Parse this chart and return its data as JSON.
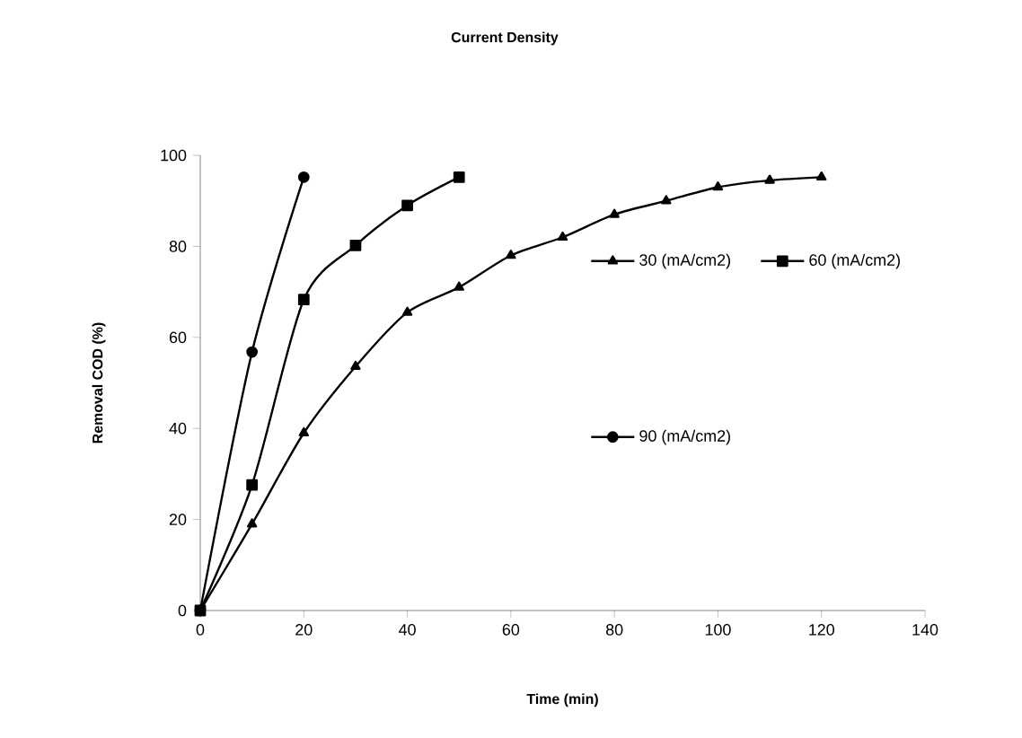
{
  "chart_data": {
    "type": "line",
    "title": "Current Density",
    "xlabel": "Time (min)",
    "ylabel": "Removal COD (%)",
    "xlim": [
      0,
      140
    ],
    "ylim": [
      0,
      100
    ],
    "xticks": [
      0,
      20,
      40,
      60,
      80,
      100,
      120,
      140
    ],
    "yticks": [
      0,
      20,
      40,
      60,
      80,
      100
    ],
    "grid": false,
    "legend": "right",
    "series": [
      {
        "name": "30 (mA/cm2)",
        "color": "#000000",
        "marker": "triangle",
        "x": [
          0,
          10,
          20,
          30,
          40,
          50,
          60,
          70,
          80,
          90,
          100,
          110,
          120
        ],
        "values": [
          0,
          19,
          39,
          53.6,
          65.5,
          71,
          78,
          82,
          87,
          90,
          93,
          94.5,
          95.2
        ]
      },
      {
        "name": "60  (mA/cm2)",
        "color": "#000000",
        "marker": "square",
        "x": [
          0,
          10,
          20,
          30,
          40,
          50
        ],
        "values": [
          0,
          27.6,
          68.3,
          80.2,
          89,
          95.2
        ]
      },
      {
        "name": "90 (mA/cm2)",
        "color": "#000000",
        "marker": "circle",
        "x": [
          0,
          10,
          20
        ],
        "values": [
          0,
          56.8,
          95.2
        ]
      }
    ]
  }
}
